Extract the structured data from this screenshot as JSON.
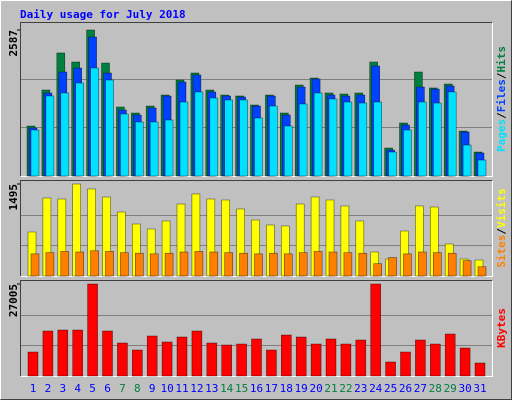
{
  "title": "Daily usage for July 2018",
  "chart_data": [
    {
      "type": "bar",
      "ylim": [
        0,
        2587
      ],
      "yticks": [
        2587
      ],
      "grid": true,
      "legend_separator": "/",
      "series": [
        {
          "name": "Hits",
          "color": "#008040",
          "values": [
            886,
            1524,
            2180,
            2020,
            2587,
            2002,
            1223,
            1116,
            1240,
            1435,
            1701,
            1825,
            1524,
            1435,
            1418,
            1258,
            1435,
            1116,
            1612,
            1736,
            1471,
            1453,
            1471,
            2020,
            496,
            939,
            1843,
            1560,
            1630,
            797,
            425
          ]
        },
        {
          "name": "Files",
          "color": "#0040ff",
          "values": [
            851,
            1471,
            1843,
            1913,
            2463,
            1825,
            1170,
            1081,
            1205,
            1417,
            1665,
            1790,
            1489,
            1417,
            1400,
            1240,
            1417,
            1081,
            1577,
            1719,
            1435,
            1417,
            1435,
            1949,
            461,
            904,
            1577,
            1540,
            1595,
            780,
            408
          ]
        },
        {
          "name": "Pages",
          "color": "#00e0ff",
          "values": [
            815,
            1418,
            1471,
            1648,
            1914,
            1701,
            1099,
            957,
            957,
            992,
            1311,
            1489,
            1382,
            1347,
            1347,
            1028,
            1240,
            886,
            1276,
            1471,
            1365,
            1311,
            1293,
            1311,
            425,
            815,
            1311,
            1293,
            1489,
            549,
            283
          ]
        }
      ]
    },
    {
      "type": "bar",
      "ylim": [
        0,
        1495
      ],
      "yticks": [
        1495
      ],
      "grid": true,
      "legend_separator": "/",
      "series": [
        {
          "name": "Visits",
          "color": "#ffff00",
          "values": [
            715,
            1268,
            1251,
            1495,
            1414,
            1284,
            1040,
            845,
            764,
            894,
            1170,
            1333,
            1251,
            1235,
            1089,
            910,
            829,
            813,
            1170,
            1284,
            1235,
            1138,
            894,
            390,
            276,
            731,
            1138,
            1121,
            520,
            276,
            260
          ]
        },
        {
          "name": "Sites",
          "color": "#ff8000",
          "values": [
            360,
            380,
            400,
            390,
            410,
            400,
            380,
            370,
            360,
            370,
            390,
            400,
            390,
            380,
            370,
            360,
            370,
            360,
            380,
            400,
            390,
            380,
            370,
            200,
            300,
            360,
            390,
            380,
            370,
            250,
            150
          ]
        }
      ]
    },
    {
      "type": "bar",
      "ylim": [
        0,
        27005
      ],
      "yticks": [
        27005
      ],
      "grid": true,
      "categories": [
        "1",
        "2",
        "3",
        "4",
        "5",
        "6",
        "7",
        "8",
        "9",
        "10",
        "11",
        "12",
        "13",
        "14",
        "15",
        "16",
        "17",
        "18",
        "19",
        "20",
        "21",
        "22",
        "23",
        "24",
        "25",
        "26",
        "27",
        "28",
        "29",
        "30",
        "31"
      ],
      "tick_label_colors": [
        "#0000ff",
        "#0000ff",
        "#0000ff",
        "#0000ff",
        "#0000ff",
        "#0000ff",
        "#008040",
        "#008040",
        "#0000ff",
        "#0000ff",
        "#0000ff",
        "#0000ff",
        "#0000ff",
        "#008040",
        "#008040",
        "#0000ff",
        "#0000ff",
        "#0000ff",
        "#0000ff",
        "#0000ff",
        "#008040",
        "#008040",
        "#0000ff",
        "#0000ff",
        "#0000ff",
        "#0000ff",
        "#0000ff",
        "#008040",
        "#008040",
        "#0000ff",
        "#0000ff"
      ],
      "series": [
        {
          "name": "KBytes",
          "color": "#ff0000",
          "values": [
            7045,
            13209,
            13502,
            13502,
            27005,
            13209,
            9687,
            7632,
            11741,
            9980,
            11448,
            13209,
            9687,
            9100,
            9393,
            10861,
            7632,
            12035,
            11448,
            9393,
            10861,
            9393,
            10567,
            27005,
            4109,
            7045,
            10567,
            9393,
            12329,
            8219,
            3816
          ]
        }
      ]
    }
  ]
}
